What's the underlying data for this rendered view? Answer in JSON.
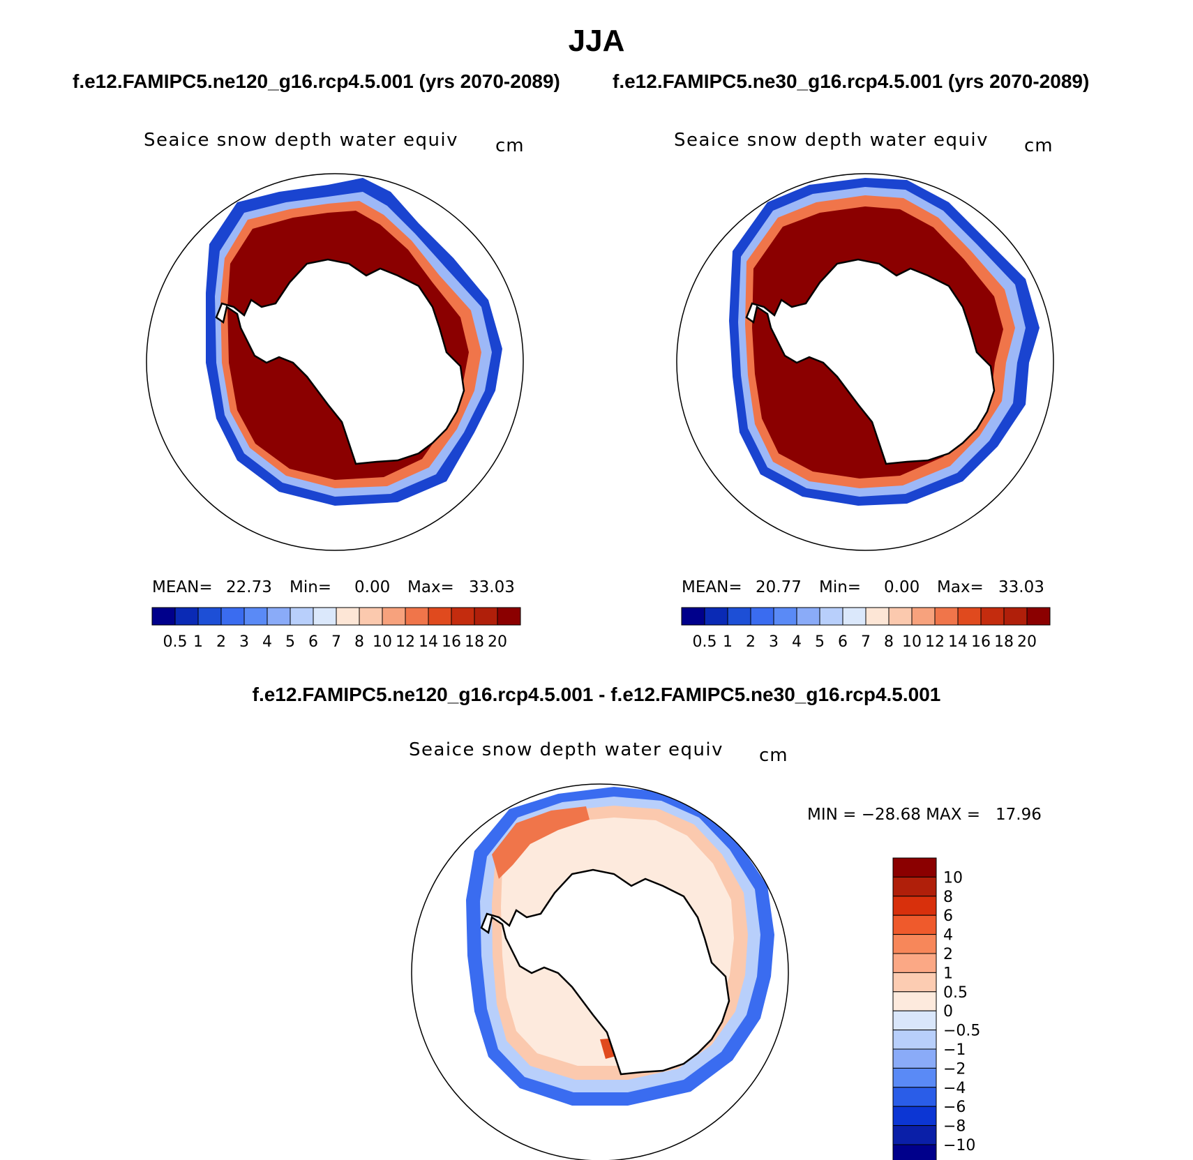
{
  "title": "JJA",
  "panels": [
    {
      "case_title": "f.e12.FAMIPC5.ne120_g16.rcp4.5.001 (yrs 2070-2089)",
      "variable": "Seaice snow depth water equiv",
      "units": "cm",
      "mean_label": "MEAN=",
      "mean": "22.73",
      "min_label": "Min=",
      "min": "0.00",
      "max_label": "Max=",
      "max": "33.03"
    },
    {
      "case_title": "f.e12.FAMIPC5.ne30_g16.rcp4.5.001 (yrs 2070-2089)",
      "variable": "Seaice snow depth water equiv",
      "units": "cm",
      "mean_label": "MEAN=",
      "mean": "20.77",
      "min_label": "Min=",
      "min": "0.00",
      "max_label": "Max=",
      "max": "33.03"
    }
  ],
  "difference": {
    "title": "f.e12.FAMIPC5.ne120_g16.rcp4.5.001 - f.e12.FAMIPC5.ne30_g16.rcp4.5.001",
    "variable": "Seaice snow depth water equiv",
    "units": "cm",
    "stats": "MIN = −28.68 MAX =   17.96"
  },
  "colorbar_levels": [
    "0.5",
    "1",
    "2",
    "3",
    "4",
    "5",
    "6",
    "7",
    "8",
    "10",
    "12",
    "14",
    "16",
    "18",
    "20"
  ],
  "colorbar_colors": [
    "#00008b",
    "#0a2ab5",
    "#1d4fd6",
    "#3a6cf0",
    "#5a8af6",
    "#8aabf8",
    "#b8cffb",
    "#dbe8fb",
    "#fde6d6",
    "#fbc9ae",
    "#f7a27d",
    "#f0754a",
    "#e04a1e",
    "#c42c0e",
    "#b01f0a",
    "#8b0000"
  ],
  "diff_levels": [
    "10",
    "8",
    "6",
    "4",
    "2",
    "1",
    "0.5",
    "0",
    "−0.5",
    "−1",
    "−2",
    "−4",
    "−6",
    "−8",
    "−10"
  ],
  "diff_colors": [
    "#8b0000",
    "#b01f0a",
    "#d8300c",
    "#ef5a2c",
    "#f7875a",
    "#fba885",
    "#fcccb2",
    "#fdeadd",
    "#d9e6fa",
    "#b8cffb",
    "#8aabf8",
    "#5a8af6",
    "#2a5de8",
    "#0c36d4",
    "#0a1fa8",
    "#00008b"
  ]
}
